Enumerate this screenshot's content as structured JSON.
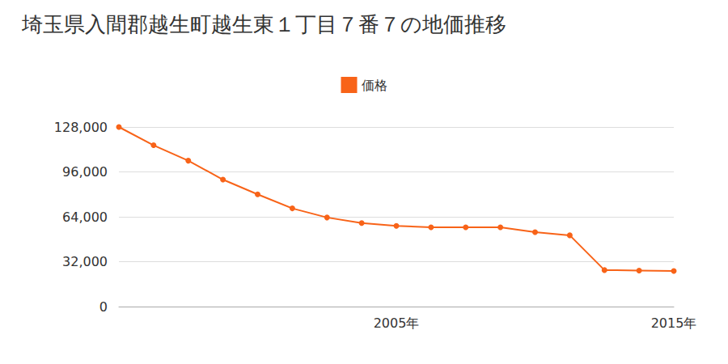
{
  "chart_data": {
    "type": "line",
    "title": "埼玉県入間郡越生町越生東１丁目７番７の地価推移",
    "categories": [
      null,
      null,
      null,
      null,
      null,
      null,
      null,
      null,
      "2005年",
      null,
      null,
      null,
      null,
      null,
      null,
      null,
      "2015年"
    ],
    "series": [
      {
        "name": "価格",
        "color": "#f86318",
        "marker": "circle",
        "values": [
          128000,
          115000,
          104000,
          90500,
          80000,
          70000,
          63500,
          59500,
          57500,
          56500,
          56500,
          56500,
          53000,
          50800,
          26000,
          25700,
          25400
        ]
      }
    ],
    "ylim": [
      0,
      128000
    ],
    "yticks": [
      0,
      {
        "value": 32000,
        "label": "32,000"
      },
      {
        "value": 64000,
        "label": "64,000"
      },
      {
        "value": 96000,
        "label": "96,000"
      },
      {
        "value": 128000,
        "label": "128,000"
      }
    ],
    "grid": true,
    "legend": "top"
  }
}
